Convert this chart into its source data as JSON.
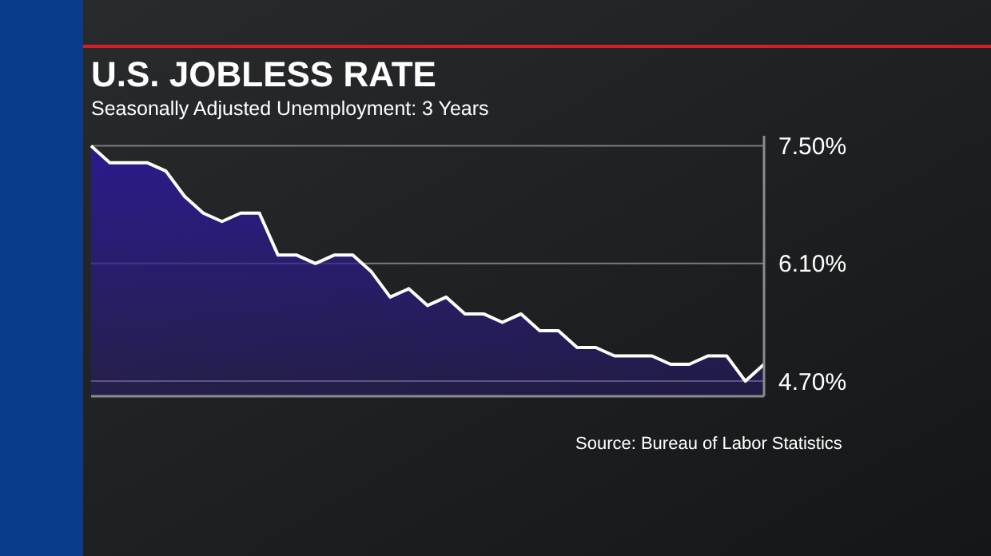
{
  "chart_data": {
    "type": "area",
    "title": "U.S. JOBLESS RATE",
    "subtitle": "Seasonally Adjusted Unemployment: 3 Years",
    "categories": [
      null,
      null,
      null,
      null,
      null,
      null,
      null,
      null,
      null,
      null,
      null,
      null,
      null,
      null,
      null,
      null,
      null,
      null,
      null,
      null,
      null,
      null,
      null,
      null,
      null,
      null,
      null,
      null,
      null,
      null,
      null,
      null,
      null,
      null,
      null,
      null,
      null
    ],
    "series": [
      {
        "color": "#2b1a8c",
        "values": [
          7.5,
          7.3,
          7.3,
          7.3,
          7.2,
          6.9,
          6.7,
          6.6,
          6.7,
          6.7,
          6.2,
          6.2,
          6.1,
          6.2,
          6.2,
          6.0,
          5.7,
          5.8,
          5.6,
          5.7,
          5.5,
          5.5,
          5.4,
          5.5,
          5.3,
          5.3,
          5.1,
          5.1,
          5.0,
          5.0,
          5.0,
          4.9,
          4.9,
          5.0,
          5.0,
          4.7,
          4.9
        ]
      }
    ],
    "ylim": [
      4.52,
      7.62
    ],
    "yticks": [
      {
        "value": 4.7,
        "label": "4.70%"
      },
      {
        "value": 6.1,
        "label": "6.10%"
      },
      {
        "value": 7.5,
        "label": "7.50%"
      }
    ],
    "grid": "y",
    "annotations": [
      "Source: Bureau of Labor Statistics"
    ]
  }
}
